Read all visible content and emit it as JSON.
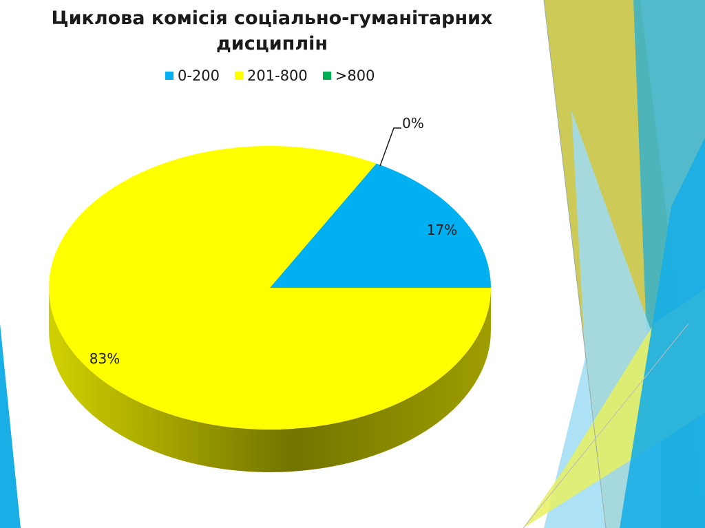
{
  "slide": {
    "title_line1": "Циклова комісія соціально-гуманітарних",
    "title_line2": "дисциплін"
  },
  "theme": {
    "accent_blue": "#00b0f0",
    "accent_yellow": "#ffff00",
    "accent_olive": "#c8c84a",
    "accent_teal": "#4bb8c0"
  },
  "chart_data": {
    "type": "pie",
    "style": "3d",
    "title": "Циклова комісія соціально-гуманітарних дисциплін",
    "legend_position": "top",
    "slices": [
      {
        "label": "0-200",
        "value": 17,
        "display": "17%",
        "color": "#00b0f0"
      },
      {
        "label": "201-800",
        "value": 83,
        "display": "83%",
        "color": "#ffff00"
      },
      {
        "label": ">800",
        "value": 0,
        "display": "0%",
        "color": "#00b050"
      }
    ]
  }
}
